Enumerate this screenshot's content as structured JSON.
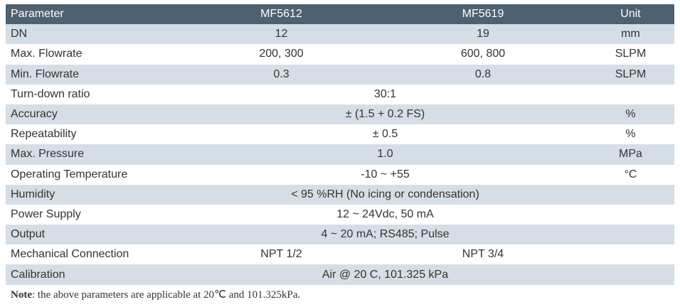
{
  "header": {
    "parameter": "Parameter",
    "model_a": "MF5612",
    "model_b": "MF5619",
    "unit": "Unit"
  },
  "rows": {
    "dn": {
      "label": "DN",
      "a": "12",
      "b": "19",
      "unit": "mm"
    },
    "max_flowrate": {
      "label": "Max. Flowrate",
      "a": "200, 300",
      "b": "600, 800",
      "unit": "SLPM"
    },
    "min_flowrate": {
      "label": "Min. Flowrate",
      "a": "0.3",
      "b": "0.8",
      "unit": "SLPM"
    },
    "turndown": {
      "label": "Turn-down ratio",
      "value": "30:1",
      "unit": ""
    },
    "accuracy": {
      "label": "Accuracy",
      "value": "± (1.5 + 0.2 FS)",
      "unit": "%"
    },
    "repeatability": {
      "label": "Repeatability",
      "value": "± 0.5",
      "unit": "%"
    },
    "max_pressure": {
      "label": "Max. Pressure",
      "value": "1.0",
      "unit": "MPa"
    },
    "operating_temp": {
      "label": "Operating Temperature",
      "value": "-10 ~ +55",
      "unit": "°C"
    },
    "humidity": {
      "label": "Humidity",
      "value": "< 95 %RH (No icing or condensation)",
      "unit": ""
    },
    "power_supply": {
      "label": "Power Supply",
      "value": "12 ~ 24Vdc, 50 mA",
      "unit": ""
    },
    "output": {
      "label": "Output",
      "value": "4 ~ 20 mA; RS485; Pulse",
      "unit": ""
    },
    "mech_connection": {
      "label": "Mechanical Connection",
      "a": "NPT 1/2",
      "b": "NPT 3/4",
      "unit": ""
    },
    "calibration": {
      "label": "Calibration",
      "value": "Air @ 20 C, 101.325 kPa",
      "unit": ""
    }
  },
  "note": {
    "label": "Note",
    "text": ": the above parameters are applicable at 20℃ and 101.325kPa."
  },
  "colors": {
    "header_bg": "#4f6170",
    "shade_bg": "#d5dee6",
    "text": "#333333"
  }
}
